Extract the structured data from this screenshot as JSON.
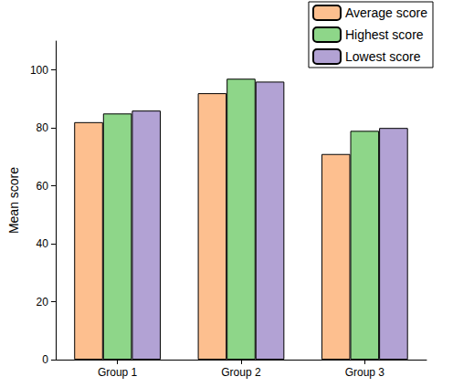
{
  "chart_data": {
    "type": "bar",
    "y_label": "Mean score",
    "categories": [
      "Group 1",
      "Group 2",
      "Group 3"
    ],
    "series": [
      {
        "name": "Average score",
        "color": "#FDBF8F",
        "values": [
          82,
          92,
          71
        ]
      },
      {
        "name": "Highest score",
        "color": "#8ED689",
        "values": [
          85,
          97,
          79
        ]
      },
      {
        "name": "Lowest score",
        "color": "#B2A2D4",
        "values": [
          86,
          96,
          80
        ]
      }
    ],
    "ylim": [
      0,
      110
    ],
    "yticks": [
      0,
      20,
      40,
      60,
      80,
      100
    ],
    "grid": false,
    "legend": "upper right"
  }
}
